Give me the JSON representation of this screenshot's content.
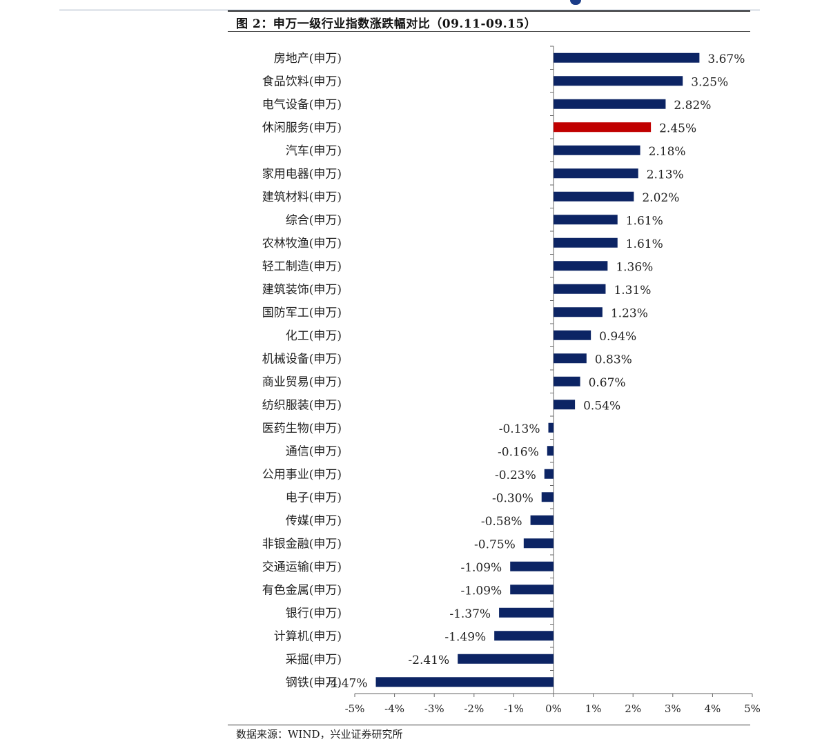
{
  "header": {
    "title": "图 2：申万一级行业指数涨跌幅对比（09.11-09.15）",
    "source": "数据来源：WIND，兴业证券研究所"
  },
  "colors": {
    "bar": "#0c2464",
    "highlight": "#c00000"
  },
  "chart_data": {
    "type": "bar",
    "orientation": "horizontal",
    "title": "图 2：申万一级行业指数涨跌幅对比（09.11-09.15）",
    "categories": [
      "房地产(申万)",
      "食品饮料(申万)",
      "电气设备(申万)",
      "休闲服务(申万)",
      "汽车(申万)",
      "家用电器(申万)",
      "建筑材料(申万)",
      "综合(申万)",
      "农林牧渔(申万)",
      "轻工制造(申万)",
      "建筑装饰(申万)",
      "国防军工(申万)",
      "化工(申万)",
      "机械设备(申万)",
      "商业贸易(申万)",
      "纺织服装(申万)",
      "医药生物(申万)",
      "通信(申万)",
      "公用事业(申万)",
      "电子(申万)",
      "传媒(申万)",
      "非银金融(申万)",
      "交通运输(申万)",
      "有色金属(申万)",
      "银行(申万)",
      "计算机(申万)",
      "采掘(申万)",
      "钢铁(申万)"
    ],
    "values": [
      3.67,
      3.25,
      2.82,
      2.45,
      2.18,
      2.13,
      2.02,
      1.61,
      1.61,
      1.36,
      1.31,
      1.23,
      0.94,
      0.83,
      0.67,
      0.54,
      -0.13,
      -0.16,
      -0.23,
      -0.3,
      -0.58,
      -0.75,
      -1.09,
      -1.09,
      -1.37,
      -1.49,
      -2.41,
      -4.47
    ],
    "value_labels": [
      "3.67%",
      "3.25%",
      "2.82%",
      "2.45%",
      "2.18%",
      "2.13%",
      "2.02%",
      "1.61%",
      "1.61%",
      "1.36%",
      "1.31%",
      "1.23%",
      "0.94%",
      "0.83%",
      "0.67%",
      "0.54%",
      "-0.13%",
      "-0.16%",
      "-0.23%",
      "-0.30%",
      "-0.58%",
      "-0.75%",
      "-1.09%",
      "-1.09%",
      "-1.37%",
      "-1.49%",
      "-2.41%",
      "-4.47%"
    ],
    "highlight_category": "休闲服务(申万)",
    "xlim": [
      -5,
      5
    ],
    "x_ticks": [
      -5,
      -4,
      -3,
      -2,
      -1,
      0,
      1,
      2,
      3,
      4,
      5
    ],
    "x_tick_labels": [
      "-5%",
      "-4%",
      "-3%",
      "-2%",
      "-1%",
      "0%",
      "1%",
      "2%",
      "3%",
      "4%",
      "5%"
    ],
    "xlabel": "",
    "ylabel": "",
    "grid": false,
    "legend": "none"
  }
}
